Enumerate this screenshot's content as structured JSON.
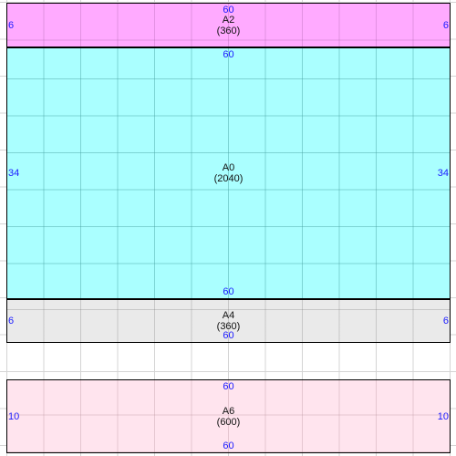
{
  "regions": {
    "a2": {
      "name": "A2",
      "area": "(360)",
      "top": "60",
      "left": "6",
      "right": "6",
      "color": "#ffaaff"
    },
    "a0": {
      "name": "A0",
      "area": "(2040)",
      "top": "60",
      "bottom": "60",
      "left": "34",
      "right": "34",
      "color": "#aaffff"
    },
    "a4": {
      "name": "A4",
      "area": "(360)",
      "bottom": "60",
      "left": "6",
      "right": "6",
      "color": "#eaeaea"
    },
    "a6": {
      "name": "A6",
      "area": "(600)",
      "top": "60",
      "bottom": "60",
      "left": "10",
      "right": "10",
      "color": "#ffe4ee"
    }
  },
  "styles": {
    "dimension_text_color": "#1a1aff",
    "border_color": "#000000",
    "grid_color": "#d4d4d4"
  }
}
